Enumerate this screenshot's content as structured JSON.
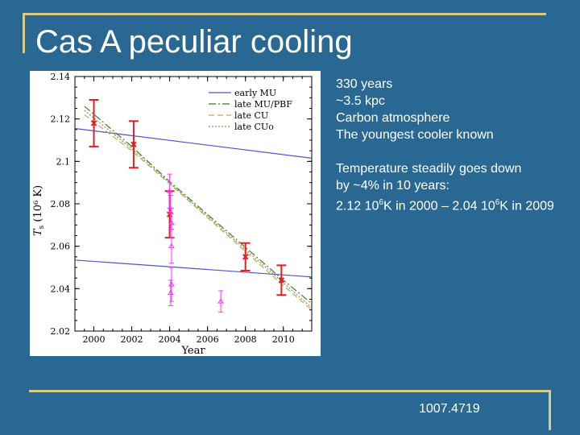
{
  "title": "Cas A peculiar cooling",
  "notes": {
    "line1": "330 years",
    "line2": "~3.5 kpc",
    "line3": "Carbon atmosphere",
    "line4": "The youngest cooler known",
    "line5": "Temperature steadily goes down",
    "line6": "by ~4% in 10 years:",
    "line7a": "2.12 10",
    "line7sup1": "6",
    "line7b": "K in 2000 – 2.04 10",
    "line7sup2": "6",
    "line7c": "K in 2009"
  },
  "reference": "1007.4719",
  "colors": {
    "background": "#2a6894",
    "accent_line": "#d8cc86",
    "blue_curves": "#4a56c8",
    "green_curve": "#3e7a2a",
    "orange_curve": "#d8a040",
    "olive_curve": "#8a8a5a",
    "red_points": "#e02020",
    "magenta_points": "#ff33ff"
  },
  "chart_data": {
    "type": "scatter",
    "xlabel": "Year",
    "ylabel_main": "T",
    "ylabel_sub": "s",
    "ylabel_units": "(10⁶ K)",
    "xlim": [
      1999.0,
      2011.5
    ],
    "ylim": [
      2.02,
      2.14
    ],
    "xticks": [
      2000,
      2002,
      2004,
      2006,
      2008,
      2010
    ],
    "xtick_labels": [
      "2000",
      "2002",
      "2004",
      "2006",
      "2008",
      "2010"
    ],
    "yticks": [
      2.02,
      2.04,
      2.06,
      2.08,
      2.1,
      2.12,
      2.14
    ],
    "ytick_labels": [
      "2.02",
      "2.04",
      "2.06",
      "2.08",
      "2.1",
      "2.12",
      "2.14"
    ],
    "legend_position": "top-right",
    "legend": [
      {
        "label": "early MU",
        "style": "solid",
        "color": "#4a56c8"
      },
      {
        "label": "late MU/PBF",
        "style": "dashdot",
        "color": "#3e7a2a"
      },
      {
        "label": "late CU",
        "style": "dashed",
        "color": "#d8a040"
      },
      {
        "label": "late CUo",
        "style": "dotted",
        "color": "#8a8a5a"
      }
    ],
    "lines": [
      {
        "id": "early-MU-upper",
        "style": "solid",
        "color": "#4a56c8",
        "x": [
          1999.0,
          2011.5
        ],
        "y": [
          2.1155,
          2.1015
        ]
      },
      {
        "id": "early-MU-lower",
        "style": "solid",
        "color": "#4a56c8",
        "x": [
          1999.0,
          2011.5
        ],
        "y": [
          2.0535,
          2.0455
        ]
      },
      {
        "id": "late-MU-PBF",
        "style": "dashdot",
        "color": "#3e7a2a",
        "x": [
          1999.5,
          2002.0,
          2004.0,
          2006.0,
          2008.0,
          2010.0,
          2011.5
        ],
        "y": [
          2.126,
          2.107,
          2.0905,
          2.075,
          2.0595,
          2.044,
          2.033
        ]
      },
      {
        "id": "late-CU",
        "style": "dashed",
        "color": "#d8a040",
        "x": [
          1999.5,
          2002.0,
          2004.0,
          2006.0,
          2008.0,
          2010.0,
          2011.5
        ],
        "y": [
          2.122,
          2.105,
          2.0895,
          2.0735,
          2.0575,
          2.0415,
          2.03
        ]
      },
      {
        "id": "late-CUo",
        "style": "dotted",
        "color": "#8a8a5a",
        "x": [
          1999.5,
          2002.0,
          2004.0,
          2006.0,
          2008.0,
          2010.0,
          2011.5
        ],
        "y": [
          2.124,
          2.106,
          2.0898,
          2.0742,
          2.0585,
          2.0428,
          2.031
        ]
      }
    ],
    "series": [
      {
        "marker": "x",
        "color": "#e02020",
        "points": [
          {
            "x": 2000.0,
            "y": 2.118,
            "err": 0.011
          },
          {
            "x": 2002.1,
            "y": 2.108,
            "err": 0.011
          },
          {
            "x": 2004.0,
            "y": 2.075,
            "err": 0.011
          },
          {
            "x": 2008.0,
            "y": 2.055,
            "err": 0.0065
          },
          {
            "x": 2009.9,
            "y": 2.044,
            "err": 0.007
          }
        ]
      },
      {
        "marker": "triangle",
        "color": "#ff33ff",
        "points": [
          {
            "x": 2004.0,
            "y": 2.086,
            "err": 0.008
          },
          {
            "x": 2004.05,
            "y": 2.076,
            "err": 0.008
          },
          {
            "x": 2004.1,
            "y": 2.071,
            "err": 0.007
          },
          {
            "x": 2004.1,
            "y": 2.06,
            "err": 0.008
          },
          {
            "x": 2004.1,
            "y": 2.042,
            "err": 0.008
          },
          {
            "x": 2004.05,
            "y": 2.038,
            "err": 0.006
          },
          {
            "x": 2006.7,
            "y": 2.034,
            "err": 0.005
          }
        ]
      }
    ]
  }
}
